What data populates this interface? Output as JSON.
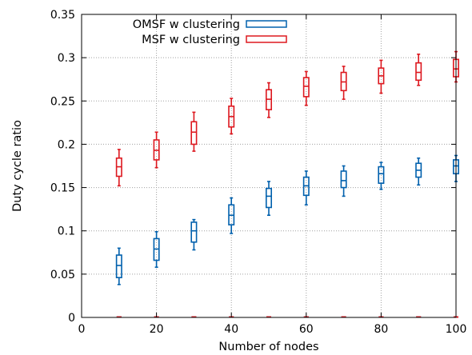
{
  "chart_data": {
    "type": "boxplot",
    "xlabel": "Number of nodes",
    "ylabel": "Duty cycle ratio",
    "xlim": [
      0,
      100
    ],
    "ylim": [
      0,
      0.35
    ],
    "xticks": [
      0,
      20,
      40,
      60,
      80,
      100
    ],
    "xtick_labels": [
      "0",
      "20",
      "40",
      "60",
      "80",
      "100"
    ],
    "yticks": [
      0,
      0.05,
      0.1,
      0.15,
      0.2,
      0.25,
      0.3,
      0.35
    ],
    "ytick_labels": [
      "0",
      "0.05",
      "0.1",
      "0.15",
      "0.2",
      "0.25",
      "0.3",
      "0.35"
    ],
    "grid": true,
    "legend_position": "top-right",
    "x": [
      10,
      20,
      30,
      40,
      50,
      60,
      70,
      80,
      90,
      100
    ],
    "series": [
      {
        "name": "OMSF w clustering",
        "color": "#0060ad",
        "whisker_low": [
          0.038,
          0.058,
          0.078,
          0.097,
          0.118,
          0.13,
          0.14,
          0.148,
          0.153,
          0.157
        ],
        "q1": [
          0.046,
          0.066,
          0.087,
          0.107,
          0.127,
          0.141,
          0.15,
          0.155,
          0.162,
          0.166
        ],
        "median": [
          0.06,
          0.079,
          0.1,
          0.118,
          0.14,
          0.152,
          0.158,
          0.166,
          0.17,
          0.175
        ],
        "q3": [
          0.072,
          0.091,
          0.11,
          0.13,
          0.149,
          0.162,
          0.169,
          0.174,
          0.178,
          0.182
        ],
        "whisker_high": [
          0.08,
          0.099,
          0.113,
          0.138,
          0.157,
          0.169,
          0.175,
          0.179,
          0.184,
          0.187
        ]
      },
      {
        "name": "MSF w clustering",
        "color": "#dd181f",
        "whisker_low": [
          0.152,
          0.173,
          0.192,
          0.212,
          0.231,
          0.245,
          0.252,
          0.259,
          0.268,
          0.272
        ],
        "q1": [
          0.163,
          0.182,
          0.2,
          0.22,
          0.24,
          0.255,
          0.262,
          0.27,
          0.274,
          0.278
        ],
        "median": [
          0.174,
          0.193,
          0.214,
          0.232,
          0.252,
          0.267,
          0.272,
          0.279,
          0.283,
          0.287
        ],
        "q3": [
          0.184,
          0.205,
          0.226,
          0.244,
          0.263,
          0.277,
          0.283,
          0.288,
          0.294,
          0.298
        ],
        "whisker_high": [
          0.194,
          0.214,
          0.237,
          0.253,
          0.271,
          0.284,
          0.29,
          0.297,
          0.304,
          0.307
        ]
      }
    ]
  }
}
